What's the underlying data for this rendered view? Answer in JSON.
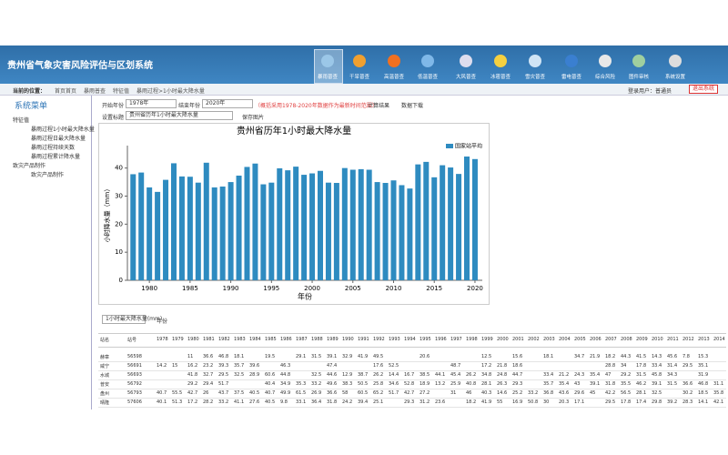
{
  "header": {
    "title": "贵州省气象灾害风险评估与区划系统",
    "nav": [
      "暴雨普查",
      "干旱普查",
      "高温普查",
      "低温普查",
      "大风普查",
      "冰雹普查",
      "雪灾普查",
      "雷电普查",
      "综合风险",
      "图件审核",
      "系统设置"
    ]
  },
  "breadcrumb": {
    "label": "当前的位置：",
    "items": [
      "首页首页",
      "暴雨普查",
      "特征值",
      "暴雨过程>1小时最大降水量"
    ],
    "user": "登录用户：普通员",
    "logout": "退出系统"
  },
  "sidebar": {
    "title": "系统菜单",
    "groups": [
      {
        "label": "特征值",
        "items": [
          "暴雨过程1小时最大降水量",
          "暴雨过程日最大降水量",
          "暴雨过程持续天数",
          "暴雨过程累计降水量"
        ]
      },
      {
        "label": "致灾产品制作",
        "items": [
          "致灾产品制作"
        ]
      }
    ]
  },
  "form": {
    "start_label": "开始年份",
    "start": "1978年",
    "end_label": "结束年份",
    "end": "2020年",
    "note": "（概括采用1978-2020年数据作为最新时间范围）",
    "calc": "计算结果",
    "download": "数据下载",
    "title_label": "设置标题",
    "title_value": "贵州省历年1小时最大降水量",
    "save": "保存图片"
  },
  "chart": {
    "type": "bar",
    "title": "贵州省历年1小时最大降水量",
    "x_label": "年份",
    "y_label": "小时降水量（mm）",
    "x": [
      1978,
      1979,
      1980,
      1981,
      1982,
      1983,
      1984,
      1985,
      1986,
      1987,
      1988,
      1989,
      1990,
      1991,
      1992,
      1993,
      1994,
      1995,
      1996,
      1997,
      1998,
      1999,
      2000,
      2001,
      2002,
      2003,
      2004,
      2005,
      2006,
      2007,
      2008,
      2009,
      2010,
      2011,
      2012,
      2013,
      2014,
      2015,
      2016,
      2017,
      2018,
      2019,
      2020
    ],
    "series": [
      {
        "name": "国家站平均",
        "color": "#2e8bc0",
        "values": [
          37.8,
          38.4,
          33.1,
          31.5,
          35.8,
          41.7,
          37.0,
          36.9,
          34.8,
          41.9,
          33.1,
          33.4,
          35.0,
          37.3,
          40.4,
          41.6,
          34.2,
          34.8,
          39.9,
          39.2,
          40.5,
          37.6,
          38.1,
          39.0,
          34.8,
          34.7,
          40.0,
          39.4,
          39.6,
          39.4,
          35.0,
          34.7,
          35.6,
          33.9,
          32.7,
          41.3,
          42.2,
          36.7,
          41.0,
          40.2,
          37.9,
          44.1,
          43.2
        ]
      }
    ],
    "xlim": [
      1977.3,
      2020.9
    ],
    "xticks": [
      1980,
      1985,
      1990,
      1995,
      2000,
      2005,
      2010,
      2015,
      2020
    ],
    "ylim": [
      0,
      48
    ],
    "yticks": [
      0,
      10,
      20,
      30,
      40
    ]
  },
  "table": {
    "toolbar": {
      "field": "1小时最大降水量(mm)",
      "group": "年份"
    },
    "columns": [
      "站名",
      "站号",
      "1978",
      "1979",
      "1980",
      "1981",
      "1982",
      "1983",
      "1984",
      "1985",
      "1986",
      "1987",
      "1988",
      "1989",
      "1990",
      "1991",
      "1992",
      "1993",
      "1994",
      "1995",
      "1996",
      "1997",
      "1998",
      "1999",
      "2000",
      "2001",
      "2002",
      "2003",
      "2004",
      "2005",
      "2006",
      "2007",
      "2008",
      "2009",
      "2010",
      "2011",
      "2012",
      "2013",
      "2014"
    ],
    "rows": [
      [
        "赫章",
        "56598",
        null,
        null,
        11,
        36.6,
        46.8,
        18.1,
        null,
        19.5,
        null,
        29.1,
        31.5,
        39.1,
        32.9,
        41.9,
        49.5,
        null,
        null,
        20.6,
        null,
        null,
        null,
        12.5,
        null,
        15.6,
        null,
        18.1,
        null,
        34.7,
        21.9,
        18.2,
        44.3,
        41.5,
        14.3,
        45.6,
        7.8,
        15.3,
        null
      ],
      [
        "威宁",
        "56691",
        14.2,
        15,
        16.2,
        23.2,
        39.3,
        35.7,
        39.6,
        null,
        46.3,
        null,
        null,
        47.4,
        null,
        null,
        17.6,
        52.5,
        null,
        null,
        null,
        48.7,
        null,
        17.2,
        21.8,
        18.6,
        null,
        null,
        null,
        null,
        null,
        28.8,
        34,
        17.8,
        33.4,
        31.4,
        29.5,
        35.1,
        null
      ],
      [
        "水城",
        "56693",
        null,
        null,
        41.8,
        32.7,
        29.5,
        32.5,
        28.9,
        60.6,
        44.8,
        null,
        32.5,
        44.6,
        12.9,
        38.7,
        26.2,
        14.4,
        16.7,
        38.5,
        44.1,
        45.4,
        26.2,
        34.8,
        24.8,
        44.7,
        null,
        33.4,
        21.2,
        24.3,
        35.4,
        47,
        29.2,
        31.5,
        45.8,
        34.3,
        null,
        31.9,
        null
      ],
      [
        "普安",
        "56792",
        null,
        null,
        29.2,
        29.4,
        51.7,
        null,
        null,
        40.4,
        34.9,
        35.3,
        33.2,
        49.6,
        38.3,
        50.5,
        25.8,
        34.6,
        52.8,
        18.9,
        13.2,
        25.9,
        40.8,
        28.1,
        26.3,
        29.3,
        null,
        35.7,
        35.4,
        43,
        39.1,
        31.8,
        35.5,
        46.2,
        39.1,
        31.5,
        36.6,
        46.8,
        31.1
      ],
      [
        "盘州",
        "56793",
        40.7,
        55.5,
        42.7,
        26,
        43.7,
        37.5,
        40.5,
        40.7,
        49.9,
        61.5,
        26.9,
        36.6,
        58,
        60.5,
        65.2,
        51.7,
        42.7,
        27.2,
        null,
        31,
        46,
        40.3,
        14.6,
        25.2,
        33.2,
        36.8,
        43.6,
        29.6,
        45,
        42.2,
        56.5,
        28.1,
        32.5,
        null,
        30.2,
        18.5,
        35.8
      ],
      [
        "晴隆",
        "57606",
        40.1,
        51.3,
        17.2,
        28.2,
        33.2,
        41.1,
        27.6,
        40.5,
        9.8,
        33.1,
        36.4,
        31.8,
        24.2,
        39.4,
        25.1,
        null,
        29.3,
        31.2,
        23.6,
        null,
        18.2,
        41.9,
        55,
        16.9,
        50.8,
        30,
        20.3,
        17.1,
        null,
        29.5,
        17.8,
        17.4,
        29.8,
        39.2,
        28.3,
        14.1,
        42.1
      ]
    ]
  }
}
